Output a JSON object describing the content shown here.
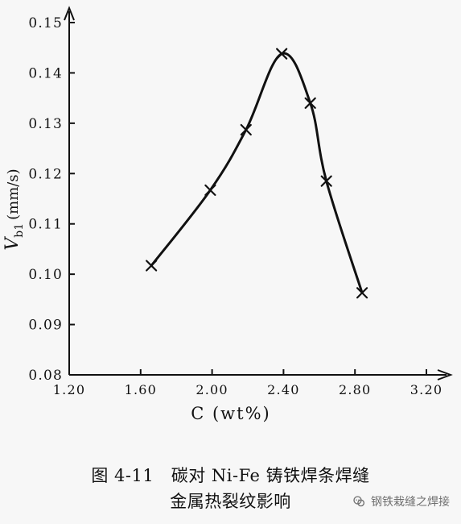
{
  "chart_data": {
    "type": "line",
    "xlabel": "C (wt%)",
    "ylabel_main": "V",
    "ylabel_subscript": "b1",
    "ylabel_unit": "(mm/s)",
    "x_ticks": [
      "1.20",
      "1.60",
      "2.00",
      "2.40",
      "2.80",
      "3.20"
    ],
    "y_ticks": [
      "0.08",
      "0.09",
      "0.10",
      "0.11",
      "0.12",
      "0.13",
      "0.14",
      "0.15"
    ],
    "xlim": [
      1.2,
      3.2
    ],
    "ylim": [
      0.08,
      0.15
    ],
    "marker": "x",
    "series": [
      {
        "points": [
          {
            "x": 1.66,
            "y": 0.1017
          },
          {
            "x": 1.99,
            "y": 0.1167
          },
          {
            "x": 2.19,
            "y": 0.1287
          },
          {
            "x": 2.39,
            "y": 0.1438
          },
          {
            "x": 2.55,
            "y": 0.134
          },
          {
            "x": 2.64,
            "y": 0.1185
          },
          {
            "x": 2.84,
            "y": 0.0963
          }
        ]
      }
    ]
  },
  "caption": {
    "line1": "图 4-11　碳对 Ni-Fe 铸铁焊条焊缝",
    "line2": "金属热裂纹影响"
  },
  "watermark": {
    "text": "钢铁栽缝之焊接"
  }
}
